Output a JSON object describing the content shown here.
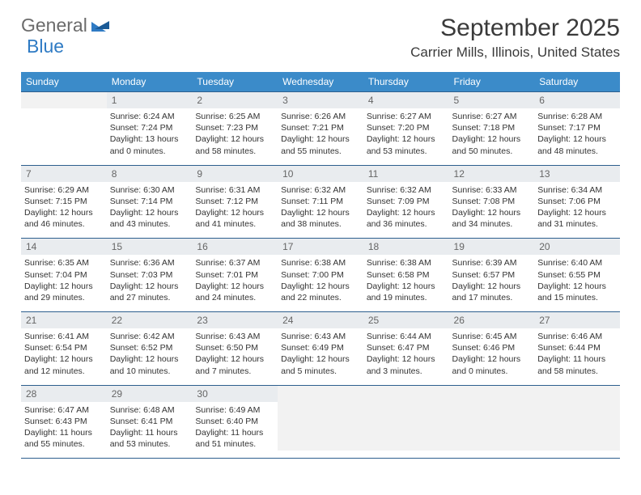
{
  "logo": {
    "part1": "General",
    "part2": "Blue"
  },
  "title": "September 2025",
  "location": "Carrier Mills, Illinois, United States",
  "colors": {
    "header_bg": "#3b8bc9",
    "header_fg": "#ffffff",
    "daynum_bg": "#e9ecef",
    "border": "#2d5f8e",
    "logo_gray": "#6b6b6b",
    "logo_blue": "#2f7bc4"
  },
  "daysOfWeek": [
    "Sunday",
    "Monday",
    "Tuesday",
    "Wednesday",
    "Thursday",
    "Friday",
    "Saturday"
  ],
  "weeks": [
    [
      {
        "n": "",
        "sr": "",
        "ss": "",
        "dl": ""
      },
      {
        "n": "1",
        "sr": "Sunrise: 6:24 AM",
        "ss": "Sunset: 7:24 PM",
        "dl": "Daylight: 13 hours and 0 minutes."
      },
      {
        "n": "2",
        "sr": "Sunrise: 6:25 AM",
        "ss": "Sunset: 7:23 PM",
        "dl": "Daylight: 12 hours and 58 minutes."
      },
      {
        "n": "3",
        "sr": "Sunrise: 6:26 AM",
        "ss": "Sunset: 7:21 PM",
        "dl": "Daylight: 12 hours and 55 minutes."
      },
      {
        "n": "4",
        "sr": "Sunrise: 6:27 AM",
        "ss": "Sunset: 7:20 PM",
        "dl": "Daylight: 12 hours and 53 minutes."
      },
      {
        "n": "5",
        "sr": "Sunrise: 6:27 AM",
        "ss": "Sunset: 7:18 PM",
        "dl": "Daylight: 12 hours and 50 minutes."
      },
      {
        "n": "6",
        "sr": "Sunrise: 6:28 AM",
        "ss": "Sunset: 7:17 PM",
        "dl": "Daylight: 12 hours and 48 minutes."
      }
    ],
    [
      {
        "n": "7",
        "sr": "Sunrise: 6:29 AM",
        "ss": "Sunset: 7:15 PM",
        "dl": "Daylight: 12 hours and 46 minutes."
      },
      {
        "n": "8",
        "sr": "Sunrise: 6:30 AM",
        "ss": "Sunset: 7:14 PM",
        "dl": "Daylight: 12 hours and 43 minutes."
      },
      {
        "n": "9",
        "sr": "Sunrise: 6:31 AM",
        "ss": "Sunset: 7:12 PM",
        "dl": "Daylight: 12 hours and 41 minutes."
      },
      {
        "n": "10",
        "sr": "Sunrise: 6:32 AM",
        "ss": "Sunset: 7:11 PM",
        "dl": "Daylight: 12 hours and 38 minutes."
      },
      {
        "n": "11",
        "sr": "Sunrise: 6:32 AM",
        "ss": "Sunset: 7:09 PM",
        "dl": "Daylight: 12 hours and 36 minutes."
      },
      {
        "n": "12",
        "sr": "Sunrise: 6:33 AM",
        "ss": "Sunset: 7:08 PM",
        "dl": "Daylight: 12 hours and 34 minutes."
      },
      {
        "n": "13",
        "sr": "Sunrise: 6:34 AM",
        "ss": "Sunset: 7:06 PM",
        "dl": "Daylight: 12 hours and 31 minutes."
      }
    ],
    [
      {
        "n": "14",
        "sr": "Sunrise: 6:35 AM",
        "ss": "Sunset: 7:04 PM",
        "dl": "Daylight: 12 hours and 29 minutes."
      },
      {
        "n": "15",
        "sr": "Sunrise: 6:36 AM",
        "ss": "Sunset: 7:03 PM",
        "dl": "Daylight: 12 hours and 27 minutes."
      },
      {
        "n": "16",
        "sr": "Sunrise: 6:37 AM",
        "ss": "Sunset: 7:01 PM",
        "dl": "Daylight: 12 hours and 24 minutes."
      },
      {
        "n": "17",
        "sr": "Sunrise: 6:38 AM",
        "ss": "Sunset: 7:00 PM",
        "dl": "Daylight: 12 hours and 22 minutes."
      },
      {
        "n": "18",
        "sr": "Sunrise: 6:38 AM",
        "ss": "Sunset: 6:58 PM",
        "dl": "Daylight: 12 hours and 19 minutes."
      },
      {
        "n": "19",
        "sr": "Sunrise: 6:39 AM",
        "ss": "Sunset: 6:57 PM",
        "dl": "Daylight: 12 hours and 17 minutes."
      },
      {
        "n": "20",
        "sr": "Sunrise: 6:40 AM",
        "ss": "Sunset: 6:55 PM",
        "dl": "Daylight: 12 hours and 15 minutes."
      }
    ],
    [
      {
        "n": "21",
        "sr": "Sunrise: 6:41 AM",
        "ss": "Sunset: 6:54 PM",
        "dl": "Daylight: 12 hours and 12 minutes."
      },
      {
        "n": "22",
        "sr": "Sunrise: 6:42 AM",
        "ss": "Sunset: 6:52 PM",
        "dl": "Daylight: 12 hours and 10 minutes."
      },
      {
        "n": "23",
        "sr": "Sunrise: 6:43 AM",
        "ss": "Sunset: 6:50 PM",
        "dl": "Daylight: 12 hours and 7 minutes."
      },
      {
        "n": "24",
        "sr": "Sunrise: 6:43 AM",
        "ss": "Sunset: 6:49 PM",
        "dl": "Daylight: 12 hours and 5 minutes."
      },
      {
        "n": "25",
        "sr": "Sunrise: 6:44 AM",
        "ss": "Sunset: 6:47 PM",
        "dl": "Daylight: 12 hours and 3 minutes."
      },
      {
        "n": "26",
        "sr": "Sunrise: 6:45 AM",
        "ss": "Sunset: 6:46 PM",
        "dl": "Daylight: 12 hours and 0 minutes."
      },
      {
        "n": "27",
        "sr": "Sunrise: 6:46 AM",
        "ss": "Sunset: 6:44 PM",
        "dl": "Daylight: 11 hours and 58 minutes."
      }
    ],
    [
      {
        "n": "28",
        "sr": "Sunrise: 6:47 AM",
        "ss": "Sunset: 6:43 PM",
        "dl": "Daylight: 11 hours and 55 minutes."
      },
      {
        "n": "29",
        "sr": "Sunrise: 6:48 AM",
        "ss": "Sunset: 6:41 PM",
        "dl": "Daylight: 11 hours and 53 minutes."
      },
      {
        "n": "30",
        "sr": "Sunrise: 6:49 AM",
        "ss": "Sunset: 6:40 PM",
        "dl": "Daylight: 11 hours and 51 minutes."
      },
      {
        "n": "",
        "sr": "",
        "ss": "",
        "dl": ""
      },
      {
        "n": "",
        "sr": "",
        "ss": "",
        "dl": ""
      },
      {
        "n": "",
        "sr": "",
        "ss": "",
        "dl": ""
      },
      {
        "n": "",
        "sr": "",
        "ss": "",
        "dl": ""
      }
    ]
  ]
}
